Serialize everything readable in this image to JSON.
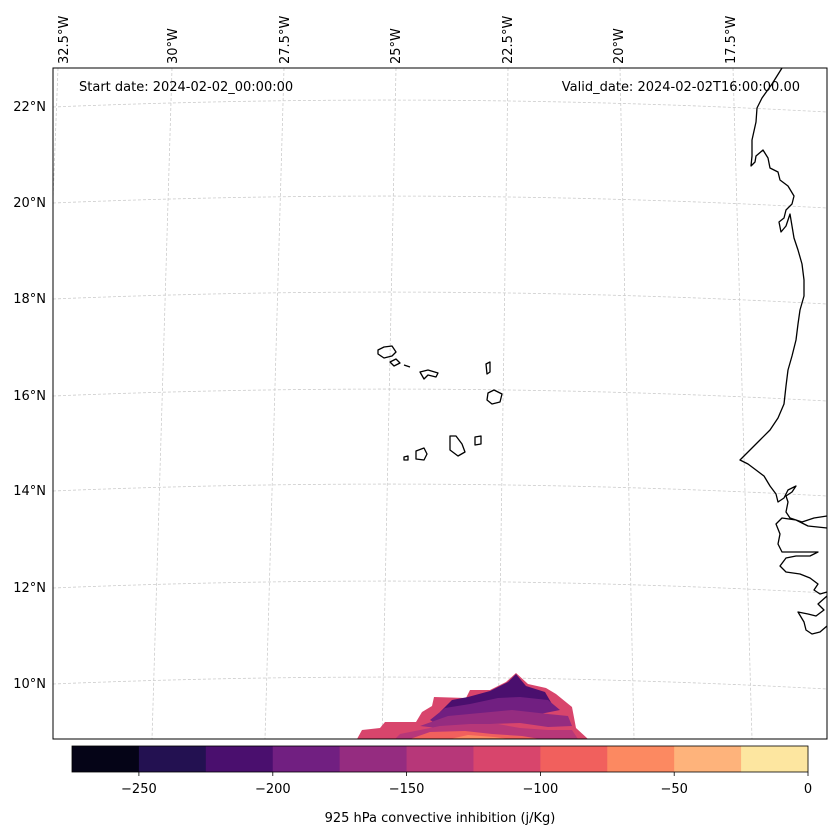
{
  "map": {
    "start_date": "Start date: 2024-02-02_00:00:00",
    "valid_date": "Valid_date: 2024-02-02T16:00:00.00",
    "lon_labels": [
      "32.5°W",
      "30°W",
      "27.5°W",
      "25°W",
      "22.5°W",
      "20°W",
      "17.5°W"
    ],
    "lat_labels": [
      "22°N",
      "20°N",
      "18°N",
      "16°N",
      "14°N",
      "12°N",
      "10°N"
    ]
  },
  "colorbar": {
    "label": "925 hPa convective inhibition (j/Kg)",
    "ticks": [
      "−250",
      "−200",
      "−150",
      "−100",
      "−50",
      "0"
    ],
    "range": [
      -275,
      0
    ],
    "colors": [
      "#050417",
      "#231151",
      "#4a0f6e",
      "#711f81",
      "#952c80",
      "#b73779",
      "#d8456c",
      "#f1605d",
      "#fc8961",
      "#feb37b",
      "#fde6a0"
    ]
  },
  "colors": {
    "coastline": "#000000",
    "gridline": "#cccccc"
  }
}
